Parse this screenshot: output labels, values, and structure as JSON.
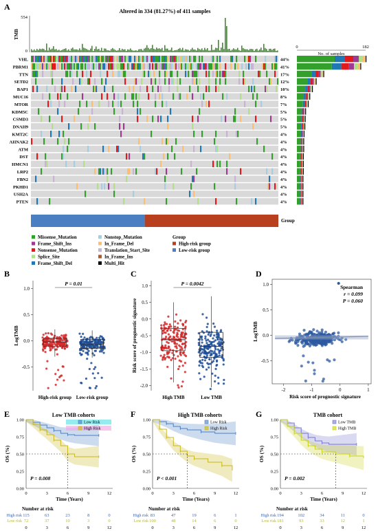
{
  "panel_a": {
    "label": "A",
    "title": "Altered in 334 (81.27%) of 411 samples",
    "tmb_label": "TMB",
    "tmb_max": "554",
    "tmb_min": "0",
    "samples_axis_label": "No. of samples",
    "samples_axis_min": "0",
    "samples_axis_max": "182",
    "group_label": "Group",
    "genes": [
      {
        "name": "VHL",
        "pct": "44%",
        "count": 182
      },
      {
        "name": "PBRM1",
        "pct": "41%",
        "count": 168
      },
      {
        "name": "TTN",
        "pct": "17%",
        "count": 70
      },
      {
        "name": "SETD2",
        "pct": "12%",
        "count": 50
      },
      {
        "name": "BAP1",
        "pct": "10%",
        "count": 40
      },
      {
        "name": "MUC16",
        "pct": "8%",
        "count": 33
      },
      {
        "name": "MTOR",
        "pct": "7%",
        "count": 29
      },
      {
        "name": "KDM5C",
        "pct": "5%",
        "count": 22
      },
      {
        "name": "CSMD3",
        "pct": "5%",
        "count": 21
      },
      {
        "name": "DNAH9",
        "pct": "5%",
        "count": 20
      },
      {
        "name": "KMT2C",
        "pct": "4%",
        "count": 18
      },
      {
        "name": "AHNAK2",
        "pct": "4%",
        "count": 17
      },
      {
        "name": "ATM",
        "pct": "4%",
        "count": 17
      },
      {
        "name": "DST",
        "pct": "4%",
        "count": 16
      },
      {
        "name": "HMCN1",
        "pct": "4%",
        "count": 16
      },
      {
        "name": "LRP2",
        "pct": "4%",
        "count": 16
      },
      {
        "name": "FBN2",
        "pct": "4%",
        "count": 15
      },
      {
        "name": "PKHD1",
        "pct": "4%",
        "count": 15
      },
      {
        "name": "USH2A",
        "pct": "4%",
        "count": 15
      },
      {
        "name": "PTEN",
        "pct": "4%",
        "count": 15
      }
    ],
    "legend_col1": [
      {
        "label": "Missense_Mutation",
        "color": "#33a02c"
      },
      {
        "label": "Frame_Shift_Ins",
        "color": "#9e3a8f"
      },
      {
        "label": "Nonsense_Mutation",
        "color": "#e31a1c"
      },
      {
        "label": "Splice_Site",
        "color": "#b2df8a"
      },
      {
        "label": "Frame_Shift_Del",
        "color": "#1f78b4"
      }
    ],
    "legend_col2": [
      {
        "label": "Nonstop_Mutation",
        "color": "#a6cee3"
      },
      {
        "label": "In_Frame_Del",
        "color": "#fdbf6f"
      },
      {
        "label": "Translation_Start_Site",
        "color": "#cab2d6"
      },
      {
        "label": "In_Frame_Ins",
        "color": "#b15928"
      },
      {
        "label": "Multi_Hit",
        "color": "#000000"
      }
    ],
    "legend_group_title": "Group",
    "legend_col3": [
      {
        "label": "High-risk group",
        "color": "#b8401f"
      },
      {
        "label": "Low-risk group",
        "color": "#4a7fc1"
      }
    ],
    "group_split_fraction": 0.46
  },
  "panel_b": {
    "label": "B",
    "pvalue": "P = 0.01",
    "ylabel": "LogTMB",
    "groups": [
      "High-risk group",
      "Low-risk group"
    ],
    "yticks": [
      "-0.5",
      "0.0",
      "0.5",
      "1.0"
    ],
    "chart_data": {
      "type": "box",
      "ylim": [
        -0.95,
        1.15
      ],
      "series": [
        {
          "name": "High-risk group",
          "color": "#d42a2a",
          "median": -0.02,
          "q1": -0.1,
          "q3": 0.05,
          "min": -0.3,
          "max": 0.22
        },
        {
          "name": "Low-risk group",
          "color": "#1f4e96",
          "median": -0.07,
          "q1": -0.14,
          "q3": 0.03,
          "min": -0.32,
          "max": 0.2
        }
      ]
    }
  },
  "panel_c": {
    "label": "C",
    "pvalue": "P = 0.0042",
    "ylabel": "Risk score of prognostic signature",
    "groups": [
      "High TMB",
      "Low TMB"
    ],
    "yticks": [
      "-2.0",
      "-1.5",
      "-1.0",
      "-0.5",
      "0.0",
      "0.5",
      "1.0"
    ],
    "chart_data": {
      "type": "box",
      "ylim": [
        -2.15,
        1.15
      ],
      "series": [
        {
          "name": "High TMB",
          "color": "#d42a2a",
          "median": -0.62,
          "q1": -0.95,
          "q3": -0.28,
          "min": -1.9,
          "max": 0.5
        },
        {
          "name": "Low TMB",
          "color": "#1f4e96",
          "median": -0.82,
          "q1": -1.15,
          "q3": -0.4,
          "min": -2.05,
          "max": 0.68
        }
      ]
    }
  },
  "panel_d": {
    "label": "D",
    "ylabel": "LogTMB",
    "xlabel": "Risk score of prognostic signature",
    "stat_title": "Spearman",
    "stat_r": "r = 0.099",
    "stat_p": "P = 0.060",
    "xticks": [
      "-2",
      "-1",
      "0",
      "1"
    ],
    "yticks": [
      "-0.5",
      "0.0",
      "0.5",
      "1.0"
    ],
    "chart_data": {
      "type": "scatter",
      "xlim": [
        -2.4,
        1.1
      ],
      "ylim": [
        -0.95,
        1.1
      ],
      "trend": {
        "x0": -2.3,
        "y0": -0.06,
        "x1": 1.0,
        "y1": -0.02
      }
    }
  },
  "panel_e": {
    "label": "E",
    "title": "Low TMB cohorts",
    "legend": [
      "Low Risk",
      "High Risk"
    ],
    "ylabel": "OS (%)",
    "xlabel": "Time (Years)",
    "pvalue": "P = 0.008",
    "risk_title": "Number at risk",
    "risk_rows": [
      {
        "label": "High risk",
        "values": [
          "115",
          "63",
          "23",
          "8",
          "0"
        ]
      },
      {
        "label": "Low risk",
        "values": [
          "72",
          "37",
          "10",
          "3",
          "0"
        ]
      }
    ],
    "chart_data": {
      "type": "line",
      "xticks": [
        "0",
        "3",
        "6",
        "9",
        "12"
      ],
      "yticks": [
        "0.00",
        "0.25",
        "0.50",
        "0.75",
        "1.00"
      ],
      "series": [
        {
          "name": "Low Risk",
          "color": "#4a7fc1",
          "points": [
            [
              0,
              1
            ],
            [
              1,
              0.96
            ],
            [
              2,
              0.92
            ],
            [
              3,
              0.88
            ],
            [
              4,
              0.84
            ],
            [
              5,
              0.8
            ],
            [
              6,
              0.78
            ],
            [
              7,
              0.77
            ],
            [
              10.5,
              0.77
            ]
          ]
        },
        {
          "name": "High Risk",
          "color": "#c9b71a",
          "points": [
            [
              0,
              1
            ],
            [
              1,
              0.93
            ],
            [
              2,
              0.85
            ],
            [
              3,
              0.78
            ],
            [
              4,
              0.7
            ],
            [
              5,
              0.62
            ],
            [
              6,
              0.5
            ],
            [
              7,
              0.46
            ],
            [
              10.5,
              0.46
            ]
          ]
        }
      ]
    }
  },
  "panel_f": {
    "label": "F",
    "title": "High TMB cohorts",
    "legend": [
      "Low Risk",
      "High Risk"
    ],
    "ylabel": "OS (%)",
    "xlabel": "Time (Years)",
    "pvalue": "P < 0.001",
    "risk_title": "Number at risk",
    "risk_rows": [
      {
        "label": "High risk",
        "values": [
          "83",
          "47",
          "19",
          "6",
          "1"
        ]
      },
      {
        "label": "Low risk",
        "values": [
          "100",
          "48",
          "14",
          "6",
          "0"
        ]
      }
    ],
    "chart_data": {
      "type": "line",
      "xticks": [
        "0",
        "3",
        "6",
        "9",
        "12"
      ],
      "yticks": [
        "0.00",
        "0.25",
        "0.50",
        "0.75",
        "1.00"
      ],
      "series": [
        {
          "name": "Low Risk",
          "color": "#4a7fc1",
          "points": [
            [
              0,
              1
            ],
            [
              1,
              0.97
            ],
            [
              2,
              0.94
            ],
            [
              3,
              0.9
            ],
            [
              4,
              0.87
            ],
            [
              5,
              0.85
            ],
            [
              7,
              0.82
            ],
            [
              9,
              0.8
            ],
            [
              12,
              0.8
            ]
          ]
        },
        {
          "name": "High Risk",
          "color": "#c9b71a",
          "points": [
            [
              0,
              1
            ],
            [
              1,
              0.86
            ],
            [
              2,
              0.74
            ],
            [
              3,
              0.62
            ],
            [
              4,
              0.54
            ],
            [
              5,
              0.47
            ],
            [
              6,
              0.43
            ],
            [
              8,
              0.38
            ],
            [
              10,
              0.33
            ],
            [
              11.5,
              0.26
            ]
          ]
        }
      ]
    }
  },
  "panel_g": {
    "label": "G",
    "title": "TMB cohort",
    "legend": [
      "Low TMB",
      "High TMB"
    ],
    "ylabel": "OS (%)",
    "xlabel": "Time (Years)",
    "pvalue": "P = 0.002",
    "risk_title": "Number at risk",
    "risk_rows": [
      {
        "label": "High risk",
        "values": [
          "194",
          "102",
          "34",
          "11",
          "0"
        ]
      },
      {
        "label": "Low risk",
        "values": [
          "181",
          "93",
          "33",
          "12",
          "1"
        ]
      }
    ],
    "chart_data": {
      "type": "line",
      "xticks": [
        "0",
        "3",
        "6",
        "9",
        "12"
      ],
      "yticks": [
        "0.00",
        "0.25",
        "0.50",
        "0.75",
        "1.00"
      ],
      "series": [
        {
          "name": "Low TMB",
          "color": "#7777cc",
          "points": [
            [
              0,
              1
            ],
            [
              1,
              0.95
            ],
            [
              2,
              0.88
            ],
            [
              3,
              0.8
            ],
            [
              4,
              0.74
            ],
            [
              5,
              0.69
            ],
            [
              6,
              0.66
            ],
            [
              7,
              0.64
            ],
            [
              11,
              0.64
            ]
          ]
        },
        {
          "name": "High TMB",
          "color": "#c9d21a",
          "points": [
            [
              0,
              1
            ],
            [
              1,
              0.9
            ],
            [
              2,
              0.8
            ],
            [
              3,
              0.7
            ],
            [
              4,
              0.62
            ],
            [
              5,
              0.57
            ],
            [
              6,
              0.53
            ],
            [
              8,
              0.5
            ],
            [
              10,
              0.47
            ],
            [
              12,
              0.44
            ]
          ]
        }
      ]
    }
  }
}
